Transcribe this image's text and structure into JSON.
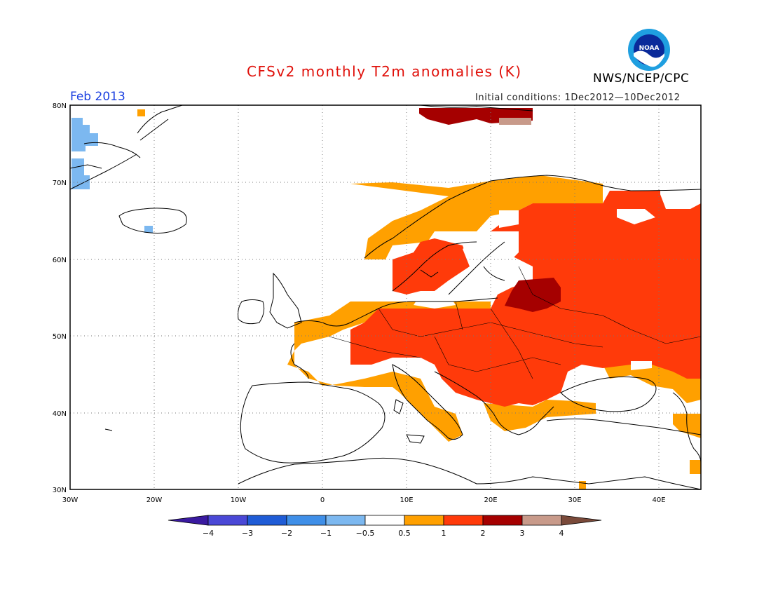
{
  "header": {
    "title": "CFSv2 monthly T2m anomalies (K)",
    "agency": "NWS/NCEP/CPC",
    "month": "Feb 2013",
    "initial_conditions": "Initial conditions: 1Dec2012—10Dec2012",
    "logo_text": "NOAA"
  },
  "map": {
    "lon_range": [
      -30,
      45
    ],
    "lat_range": [
      30,
      80
    ],
    "lon_ticks": [
      {
        "value": -30,
        "label": "30W"
      },
      {
        "value": -20,
        "label": "20W"
      },
      {
        "value": -10,
        "label": "10W"
      },
      {
        "value": 0,
        "label": "0"
      },
      {
        "value": 10,
        "label": "10E"
      },
      {
        "value": 20,
        "label": "20E"
      },
      {
        "value": 30,
        "label": "30E"
      },
      {
        "value": 40,
        "label": "40E"
      }
    ],
    "lat_ticks": [
      {
        "value": 30,
        "label": "30N"
      },
      {
        "value": 40,
        "label": "40N"
      },
      {
        "value": 50,
        "label": "50N"
      },
      {
        "value": 60,
        "label": "60N"
      },
      {
        "value": 70,
        "label": "70N"
      },
      {
        "value": 80,
        "label": "80N"
      }
    ],
    "grid": "dotted"
  },
  "colorbar": {
    "labels": [
      "−4",
      "−3",
      "−2",
      "−1",
      "−0.5",
      "0.5",
      "1",
      "2",
      "3",
      "4"
    ],
    "colors": [
      "#3a1aa0",
      "#4a48d6",
      "#1f5cd6",
      "#3f8fe8",
      "#7cb8f0",
      "#ffffff",
      "#ffa000",
      "#ff3a0a",
      "#a50000",
      "#c89a8a",
      "#7a4a3a"
    ]
  }
}
